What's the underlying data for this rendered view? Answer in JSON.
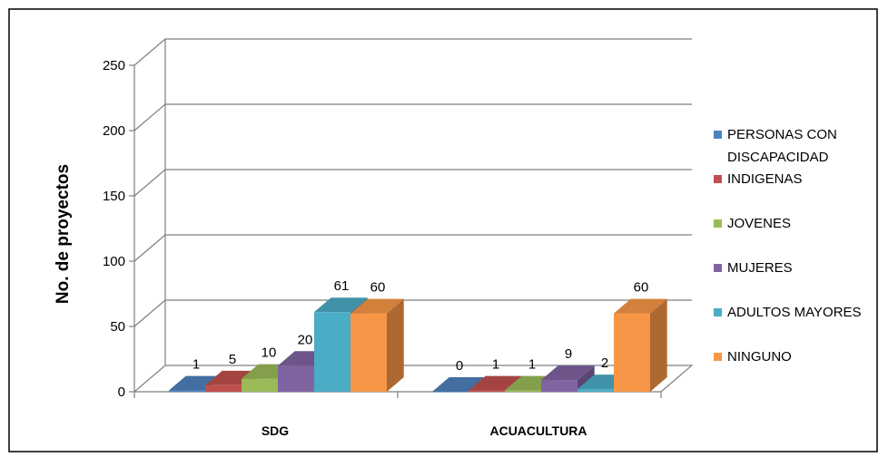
{
  "chart_data": {
    "type": "bar",
    "categories": [
      "SDG",
      "ACUACULTURA"
    ],
    "series": [
      {
        "name": "PERSONAS CON DISCAPACIDAD",
        "values": [
          1,
          0
        ],
        "color": "#4f81bd"
      },
      {
        "name": "INDIGENAS",
        "values": [
          5,
          1
        ],
        "color": "#c0504d"
      },
      {
        "name": "JOVENES",
        "values": [
          10,
          1
        ],
        "color": "#9bbb59"
      },
      {
        "name": "MUJERES",
        "values": [
          20,
          9
        ],
        "color": "#8064a2"
      },
      {
        "name": "ADULTOS MAYORES",
        "values": [
          61,
          2
        ],
        "color": "#4bacc6"
      },
      {
        "name": "NINGUNO",
        "values": [
          60,
          60
        ],
        "color": "#f79646"
      }
    ],
    "title": "",
    "xlabel": "",
    "ylabel": "No. de proyectos",
    "ylim": [
      0,
      250
    ],
    "yticks": [
      0,
      50,
      100,
      150,
      200,
      250
    ],
    "grid": true,
    "legend": "right",
    "style": "3d-clustered-column"
  }
}
